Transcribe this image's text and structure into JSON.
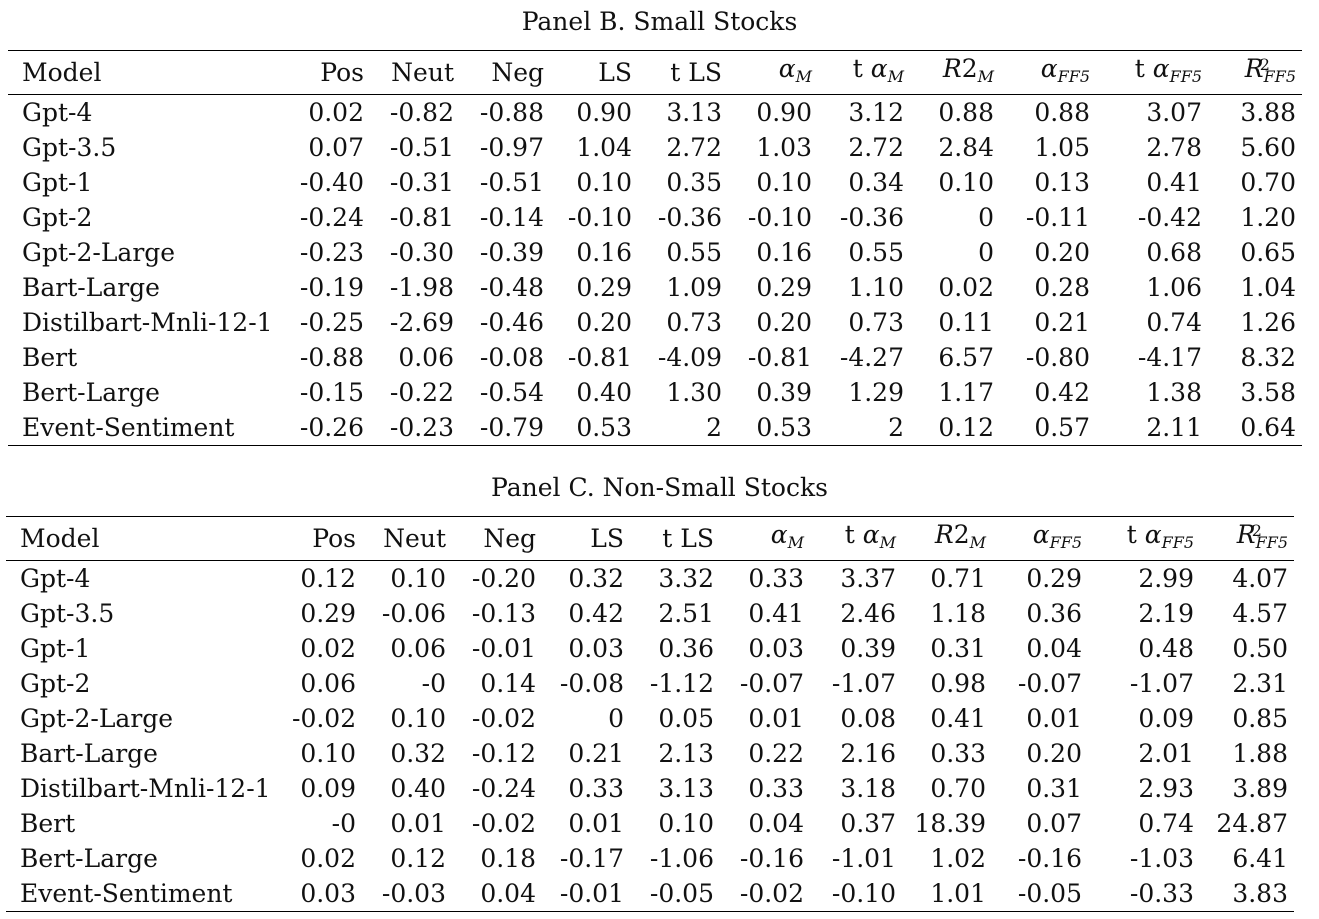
{
  "panel_b": {
    "title": "Panel B. Small Stocks",
    "columns": [
      "Model",
      "Pos",
      "Neut",
      "Neg",
      "LS",
      "t LS",
      "αM",
      "t αM",
      "R2M",
      "αFF5",
      "t αFF5",
      "R2FF5"
    ],
    "rows": [
      [
        "Gpt-4",
        "0.02",
        "-0.82",
        "-0.88",
        "0.90",
        "3.13",
        "0.90",
        "3.12",
        "0.88",
        "0.88",
        "3.07",
        "3.88"
      ],
      [
        "Gpt-3.5",
        "0.07",
        "-0.51",
        "-0.97",
        "1.04",
        "2.72",
        "1.03",
        "2.72",
        "2.84",
        "1.05",
        "2.78",
        "5.60"
      ],
      [
        "Gpt-1",
        "-0.40",
        "-0.31",
        "-0.51",
        "0.10",
        "0.35",
        "0.10",
        "0.34",
        "0.10",
        "0.13",
        "0.41",
        "0.70"
      ],
      [
        "Gpt-2",
        "-0.24",
        "-0.81",
        "-0.14",
        "-0.10",
        "-0.36",
        "-0.10",
        "-0.36",
        "0",
        "-0.11",
        "-0.42",
        "1.20"
      ],
      [
        "Gpt-2-Large",
        "-0.23",
        "-0.30",
        "-0.39",
        "0.16",
        "0.55",
        "0.16",
        "0.55",
        "0",
        "0.20",
        "0.68",
        "0.65"
      ],
      [
        "Bart-Large",
        "-0.19",
        "-1.98",
        "-0.48",
        "0.29",
        "1.09",
        "0.29",
        "1.10",
        "0.02",
        "0.28",
        "1.06",
        "1.04"
      ],
      [
        "Distilbart-Mnli-12-1",
        "-0.25",
        "-2.69",
        "-0.46",
        "0.20",
        "0.73",
        "0.20",
        "0.73",
        "0.11",
        "0.21",
        "0.74",
        "1.26"
      ],
      [
        "Bert",
        "-0.88",
        "0.06",
        "-0.08",
        "-0.81",
        "-4.09",
        "-0.81",
        "-4.27",
        "6.57",
        "-0.80",
        "-4.17",
        "8.32"
      ],
      [
        "Bert-Large",
        "-0.15",
        "-0.22",
        "-0.54",
        "0.40",
        "1.30",
        "0.39",
        "1.29",
        "1.17",
        "0.42",
        "1.38",
        "3.58"
      ],
      [
        "Event-Sentiment",
        "-0.26",
        "-0.23",
        "-0.79",
        "0.53",
        "2",
        "0.53",
        "2",
        "0.12",
        "0.57",
        "2.11",
        "0.64"
      ]
    ]
  },
  "panel_c": {
    "title": "Panel C. Non-Small Stocks",
    "columns": [
      "Model",
      "Pos",
      "Neut",
      "Neg",
      "LS",
      "t LS",
      "αM",
      "t αM",
      "R2M",
      "αFF5",
      "t αFF5",
      "R2FF5"
    ],
    "rows": [
      [
        "Gpt-4",
        "0.12",
        "0.10",
        "-0.20",
        "0.32",
        "3.32",
        "0.33",
        "3.37",
        "0.71",
        "0.29",
        "2.99",
        "4.07"
      ],
      [
        "Gpt-3.5",
        "0.29",
        "-0.06",
        "-0.13",
        "0.42",
        "2.51",
        "0.41",
        "2.46",
        "1.18",
        "0.36",
        "2.19",
        "4.57"
      ],
      [
        "Gpt-1",
        "0.02",
        "0.06",
        "-0.01",
        "0.03",
        "0.36",
        "0.03",
        "0.39",
        "0.31",
        "0.04",
        "0.48",
        "0.50"
      ],
      [
        "Gpt-2",
        "0.06",
        "-0",
        "0.14",
        "-0.08",
        "-1.12",
        "-0.07",
        "-1.07",
        "0.98",
        "-0.07",
        "-1.07",
        "2.31"
      ],
      [
        "Gpt-2-Large",
        "-0.02",
        "0.10",
        "-0.02",
        "0",
        "0.05",
        "0.01",
        "0.08",
        "0.41",
        "0.01",
        "0.09",
        "0.85"
      ],
      [
        "Bart-Large",
        "0.10",
        "0.32",
        "-0.12",
        "0.21",
        "2.13",
        "0.22",
        "2.16",
        "0.33",
        "0.20",
        "2.01",
        "1.88"
      ],
      [
        "Distilbart-Mnli-12-1",
        "0.09",
        "0.40",
        "-0.24",
        "0.33",
        "3.13",
        "0.33",
        "3.18",
        "0.70",
        "0.31",
        "2.93",
        "3.89"
      ],
      [
        "Bert",
        "-0",
        "0.01",
        "-0.02",
        "0.01",
        "0.10",
        "0.04",
        "0.37",
        "18.39",
        "0.07",
        "0.74",
        "24.87"
      ],
      [
        "Bert-Large",
        "0.02",
        "0.12",
        "0.18",
        "-0.17",
        "-1.06",
        "-0.16",
        "-1.01",
        "1.02",
        "-0.16",
        "-1.03",
        "6.41"
      ],
      [
        "Event-Sentiment",
        "0.03",
        "-0.03",
        "0.04",
        "-0.01",
        "-0.05",
        "-0.02",
        "-0.10",
        "1.01",
        "-0.05",
        "-0.33",
        "3.83"
      ]
    ]
  }
}
